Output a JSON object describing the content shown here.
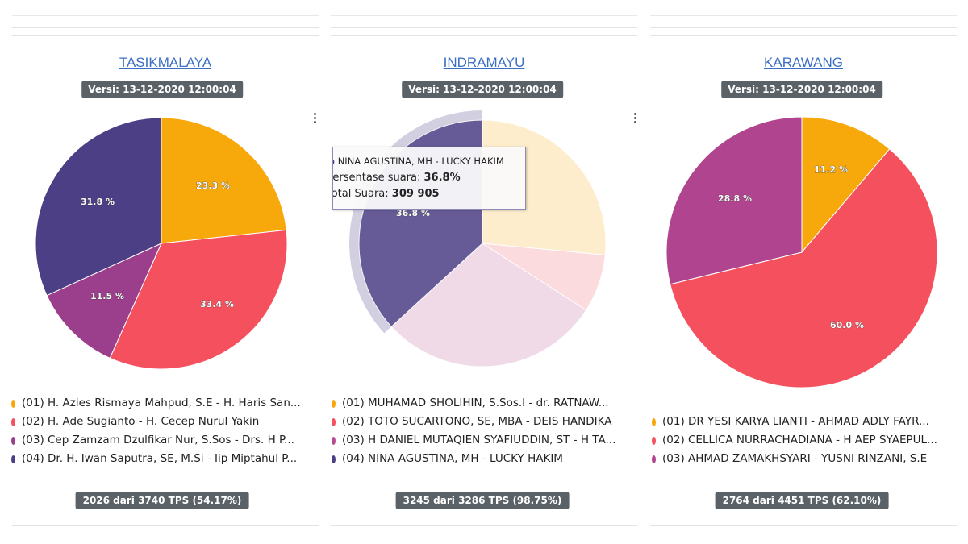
{
  "chart_data": [
    {
      "type": "pie",
      "title": "TASIKMALAYA",
      "version": "Versi: 13-12-2020 12:00:04",
      "categories": [
        "(01) H. Azies Rismaya Mahpud, S.E - H. Haris San...",
        "(02) H. Ade Sugianto - H. Cecep Nurul Yakin",
        "(03) Cep Zamzam Dzulfikar Nur, S.Sos - Drs. H P...",
        "(04) Dr. H. Iwan Saputra, SE, M.Si - Iip Miptahul P..."
      ],
      "values": [
        23.3,
        33.4,
        11.5,
        31.8
      ],
      "labels": [
        "23.3 %",
        "33.4 %",
        "11.5 %",
        "31.8 %"
      ],
      "colors": [
        "#f7a80b",
        "#f5505e",
        "#9b3e8c",
        "#4d3f85"
      ],
      "footer": "2026 dari 3740 TPS (54.17%)"
    },
    {
      "type": "pie",
      "title": "INDRAMAYU",
      "version": "Versi: 13-12-2020 12:00:04",
      "categories": [
        "(01) MUHAMAD SHOLIHIN, S.Sos.I - dr. RATNAW...",
        "(02) TOTO SUCARTONO, SE, MBA - DEIS HANDIKA",
        "(03) H DANIEL MUTAQIEN SYAFIUDDIN, ST - H TA...",
        "(04) NINA AGUSTINA, MH - LUCKY HAKIM"
      ],
      "values": [
        26.5,
        7.6,
        29.1,
        36.8
      ],
      "labels": [
        "",
        "",
        "",
        "36.8 %"
      ],
      "colors": [
        "#f7a80b",
        "#f5505e",
        "#b84c92",
        "#4d3f85"
      ],
      "highlight_index": 3,
      "tooltip": {
        "name": "NINA AGUSTINA, MH - LUCKY HAKIM",
        "share_label": "Persentase suara:",
        "share_value": "36.8%",
        "total_label": "Total Suara:",
        "total_value": "309 905"
      },
      "footer": "3245 dari 3286 TPS (98.75%)"
    },
    {
      "type": "pie",
      "title": "KARAWANG",
      "version": "Versi: 13-12-2020 12:00:04",
      "categories": [
        "(01) DR YESI KARYA LIANTI - AHMAD ADLY FAYR...",
        "(02) CELLICA NURRACHADIANA - H AEP SYAEPUL...",
        "(03) AHMAD ZAMAKHSYARI - YUSNI RINZANI, S.E"
      ],
      "values": [
        11.2,
        60.0,
        28.8
      ],
      "labels": [
        "11.2 %",
        "60.0 %",
        "28.8 %"
      ],
      "colors": [
        "#f7a80b",
        "#f5505e",
        "#b1448e"
      ],
      "footer": "2764 dari 4451 TPS (62.10%)"
    }
  ]
}
